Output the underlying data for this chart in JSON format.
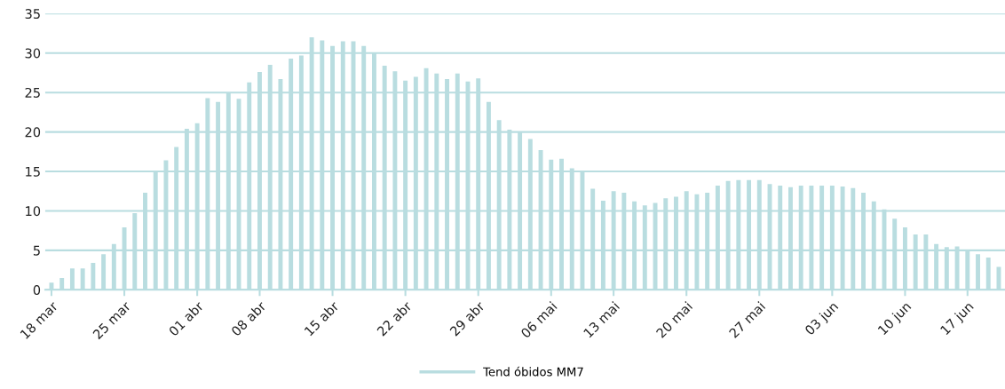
{
  "chart_data": {
    "type": "bar",
    "categories": [
      "18 mar",
      null,
      null,
      null,
      null,
      null,
      null,
      "25 mar",
      null,
      null,
      null,
      null,
      null,
      null,
      "01 abr",
      null,
      null,
      null,
      null,
      null,
      "08 abr",
      null,
      null,
      null,
      null,
      null,
      null,
      "15 abr",
      null,
      null,
      null,
      null,
      null,
      null,
      "22 abr",
      null,
      null,
      null,
      null,
      null,
      null,
      "29 abr",
      null,
      null,
      null,
      null,
      null,
      null,
      "06 mai",
      null,
      null,
      null,
      null,
      null,
      "13 mai",
      null,
      null,
      null,
      null,
      null,
      null,
      "20 mai",
      null,
      null,
      null,
      null,
      null,
      null,
      "27 mai",
      null,
      null,
      null,
      null,
      null,
      null,
      "03 jun",
      null,
      null,
      null,
      null,
      null,
      null,
      "10 jun",
      null,
      null,
      null,
      null,
      null,
      "17 jun",
      null,
      null,
      null
    ],
    "series": [
      {
        "name": "Tend óbidos MM7",
        "color": "#b9dde0",
        "values": [
          0.9,
          1.5,
          2.7,
          2.7,
          3.4,
          4.5,
          5.8,
          7.9,
          9.7,
          12.3,
          14.9,
          16.4,
          18.1,
          20.4,
          21.1,
          24.3,
          23.8,
          24.9,
          24.2,
          26.3,
          27.6,
          28.5,
          26.7,
          29.3,
          29.7,
          32.0,
          31.6,
          30.9,
          31.5,
          31.5,
          30.9,
          30.0,
          28.4,
          27.7,
          26.5,
          27.0,
          28.1,
          27.4,
          26.7,
          27.4,
          26.4,
          26.8,
          23.8,
          21.5,
          20.3,
          20.0,
          19.1,
          17.7,
          16.5,
          16.6,
          15.4,
          14.9,
          12.8,
          11.3,
          12.5,
          12.3,
          11.2,
          10.7,
          11.0,
          11.6,
          11.8,
          12.5,
          12.1,
          12.3,
          13.2,
          13.8,
          13.9,
          13.9,
          13.9,
          13.4,
          13.2,
          13.0,
          13.2,
          13.2,
          13.2,
          13.2,
          13.1,
          12.9,
          12.3,
          11.2,
          10.2,
          9.0,
          7.9,
          7.0,
          7.0,
          5.8,
          5.4,
          5.5,
          5.1,
          4.5,
          4.1,
          2.9
        ]
      }
    ],
    "ylim": [
      0,
      35
    ],
    "yticks": [
      0,
      5,
      10,
      15,
      20,
      25,
      30,
      35
    ],
    "grid": "y",
    "legend": "bottom"
  }
}
